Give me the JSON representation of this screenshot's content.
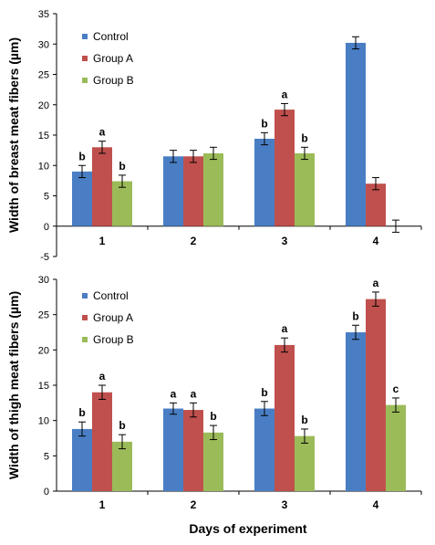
{
  "figure": {
    "xlabel": "Days of experiment"
  },
  "chart_data": [
    {
      "type": "bar",
      "ylabel": "Width of  breast meat fibers (µm)",
      "categories": [
        "1",
        "2",
        "3",
        "4"
      ],
      "ylim": [
        -5,
        35
      ],
      "yticks": [
        -5,
        0,
        5,
        10,
        15,
        20,
        25,
        30,
        35
      ],
      "grid": false,
      "legend_position": "top-left",
      "series": [
        {
          "name": "Control",
          "color": "#4a7ec4",
          "values": [
            9.0,
            11.5,
            14.4,
            30.2
          ],
          "errors": [
            1.0,
            1.0,
            1.0,
            1.0
          ],
          "labels": [
            "b",
            "",
            "b",
            ""
          ]
        },
        {
          "name": "Group A",
          "color": "#c0504d",
          "values": [
            13.0,
            11.5,
            19.2,
            7.0
          ],
          "errors": [
            1.0,
            1.0,
            1.0,
            1.0
          ],
          "labels": [
            "a",
            "",
            "a",
            ""
          ]
        },
        {
          "name": "Group B",
          "color": "#9bbb59",
          "values": [
            7.4,
            12.0,
            12.0,
            0.0
          ],
          "errors": [
            1.0,
            1.0,
            1.0,
            1.0
          ],
          "labels": [
            "b",
            "",
            "b",
            ""
          ]
        }
      ]
    },
    {
      "type": "bar",
      "ylabel": "Width of  thigh meat fibers (µm)",
      "categories": [
        "1",
        "2",
        "3",
        "4"
      ],
      "ylim": [
        0,
        30
      ],
      "yticks": [
        0,
        5,
        10,
        15,
        20,
        25,
        30
      ],
      "grid": false,
      "legend_position": "top-left",
      "series": [
        {
          "name": "Control",
          "color": "#4a7ec4",
          "values": [
            8.8,
            11.7,
            11.7,
            22.5
          ],
          "errors": [
            1.0,
            0.8,
            1.0,
            1.0
          ],
          "labels": [
            "b",
            "a",
            "b",
            "b"
          ]
        },
        {
          "name": "Group A",
          "color": "#c0504d",
          "values": [
            14.0,
            11.5,
            20.7,
            27.2
          ],
          "errors": [
            1.0,
            1.0,
            1.0,
            1.0
          ],
          "labels": [
            "a",
            "a",
            "a",
            "a"
          ]
        },
        {
          "name": "Group B",
          "color": "#9bbb59",
          "values": [
            7.0,
            8.3,
            7.8,
            12.2
          ],
          "errors": [
            1.0,
            1.0,
            1.0,
            1.0
          ],
          "labels": [
            "b",
            "b",
            "b",
            "c"
          ]
        }
      ]
    }
  ]
}
